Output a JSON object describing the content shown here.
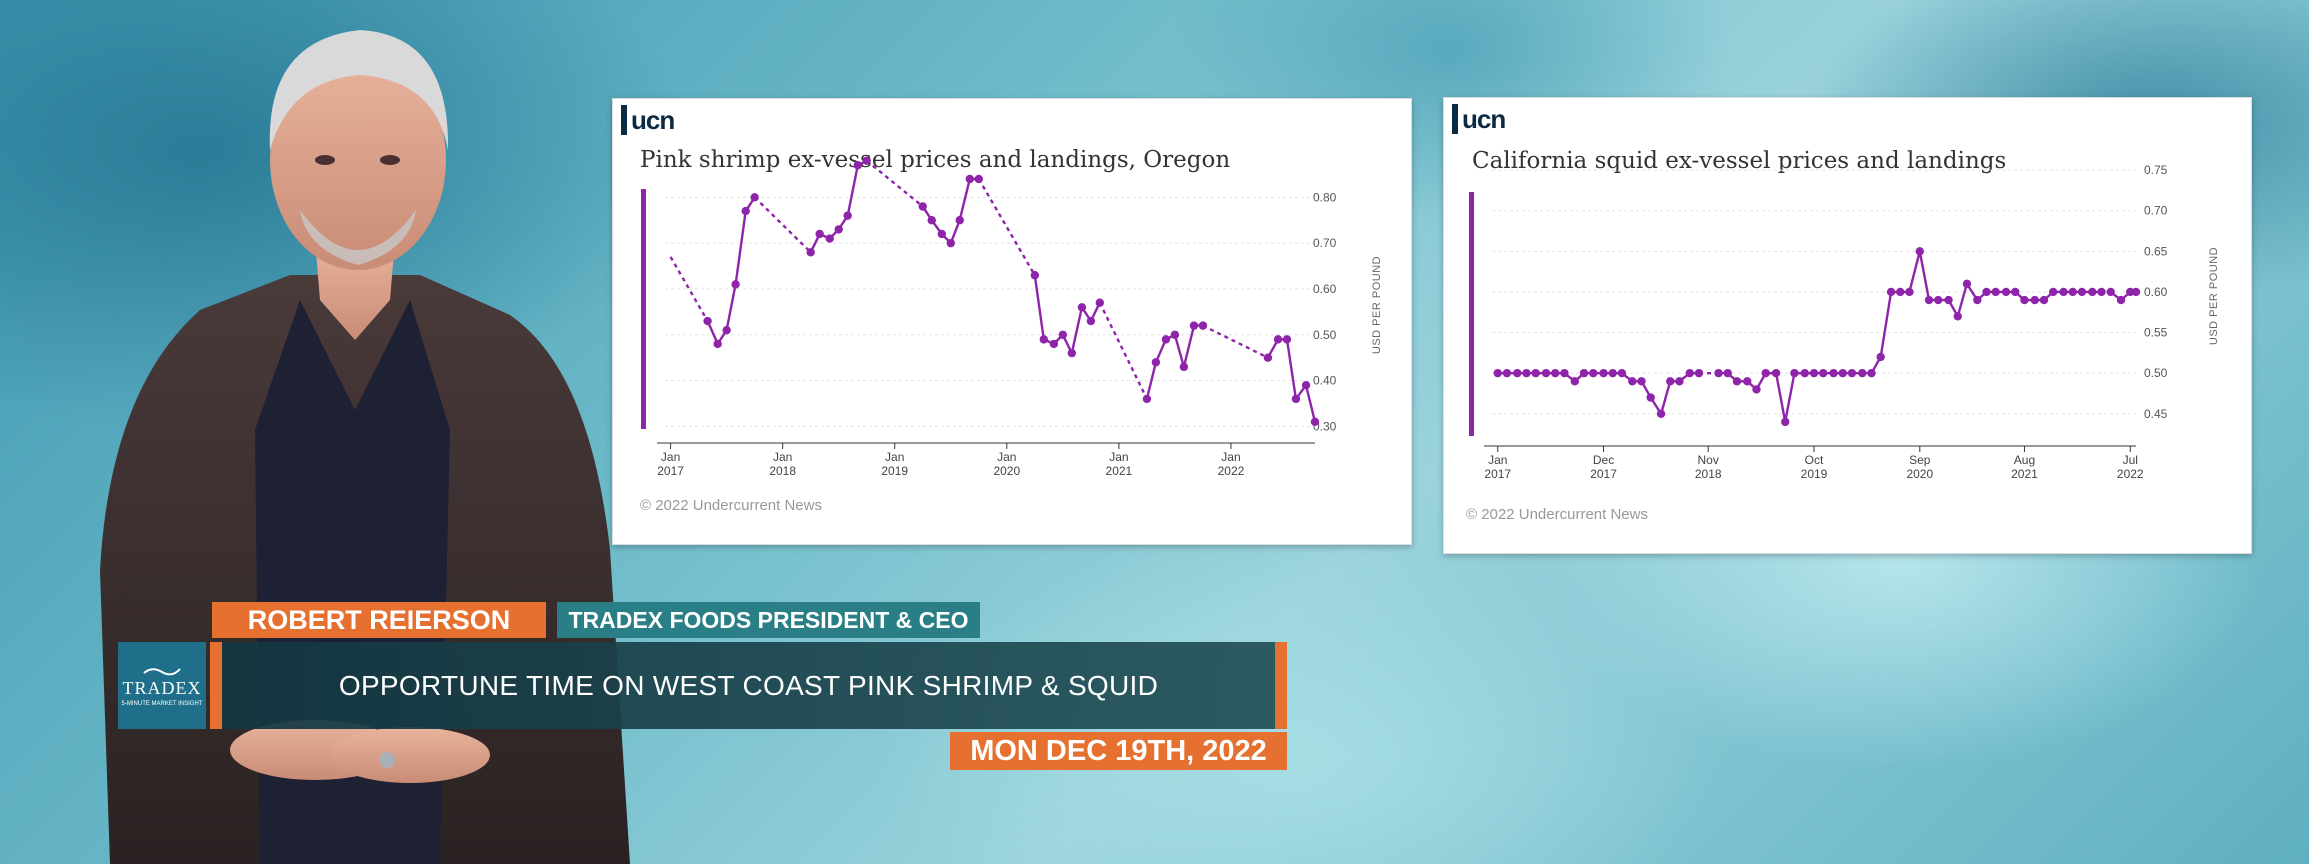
{
  "presenter": {
    "name": "ROBERT REIERSON",
    "role": "TRADEX FOODS PRESIDENT & CEO"
  },
  "headline": "OPPORTUNE TIME ON WEST COAST PINK SHRIMP & SQUID",
  "date": "MON DEC 19TH, 2022",
  "brand": {
    "name": "TRADEX",
    "sub": "5-MINUTE MARKET INSIGHT"
  },
  "colors": {
    "accent_orange": "#e5702f",
    "teal": "#2a7f86",
    "series_purple": "#8e24aa",
    "ucn_navy": "#0c2a44"
  },
  "chart_data": [
    {
      "type": "line",
      "logo": "ucn",
      "title": "Pink shrimp ex-vessel prices and landings, Oregon",
      "ylabel": "USD PER POUND",
      "copyright": "© 2022 Undercurrent News",
      "x_ticks": [
        {
          "month": "Jan",
          "year": "2017",
          "t": 2017.0
        },
        {
          "month": "Jan",
          "year": "2018",
          "t": 2018.0
        },
        {
          "month": "Jan",
          "year": "2019",
          "t": 2019.0
        },
        {
          "month": "Jan",
          "year": "2020",
          "t": 2020.0
        },
        {
          "month": "Jan",
          "year": "2021",
          "t": 2021.0
        },
        {
          "month": "Jan",
          "year": "2022",
          "t": 2022.0
        }
      ],
      "y_ticks": [
        "0.30",
        "0.40",
        "0.50",
        "0.60",
        "0.70",
        "0.80"
      ],
      "xlim": [
        2016.95,
        2022.75
      ],
      "ylim": [
        0.29,
        0.84
      ],
      "grid": true,
      "segments": [
        {
          "style": "dashed",
          "points": [
            [
              2017.0,
              0.67
            ],
            [
              2017.33,
              0.53
            ]
          ]
        },
        {
          "style": "solid",
          "points": [
            [
              2017.33,
              0.53
            ],
            [
              2017.42,
              0.48
            ],
            [
              2017.5,
              0.51
            ],
            [
              2017.58,
              0.61
            ],
            [
              2017.67,
              0.77
            ],
            [
              2017.75,
              0.8
            ]
          ]
        },
        {
          "style": "dashed",
          "points": [
            [
              2017.75,
              0.8
            ],
            [
              2018.25,
              0.68
            ]
          ]
        },
        {
          "style": "solid",
          "points": [
            [
              2018.25,
              0.68
            ],
            [
              2018.33,
              0.72
            ],
            [
              2018.42,
              0.71
            ],
            [
              2018.5,
              0.73
            ],
            [
              2018.58,
              0.76
            ],
            [
              2018.67,
              0.87
            ],
            [
              2018.75,
              0.88
            ]
          ]
        },
        {
          "style": "dashed",
          "points": [
            [
              2018.75,
              0.88
            ],
            [
              2019.25,
              0.78
            ]
          ]
        },
        {
          "style": "solid",
          "points": [
            [
              2019.25,
              0.78
            ],
            [
              2019.33,
              0.75
            ],
            [
              2019.42,
              0.72
            ],
            [
              2019.5,
              0.7
            ],
            [
              2019.58,
              0.75
            ],
            [
              2019.67,
              0.84
            ],
            [
              2019.75,
              0.84
            ]
          ]
        },
        {
          "style": "dashed",
          "points": [
            [
              2019.75,
              0.84
            ],
            [
              2020.25,
              0.63
            ]
          ]
        },
        {
          "style": "solid",
          "points": [
            [
              2020.25,
              0.63
            ],
            [
              2020.33,
              0.49
            ],
            [
              2020.42,
              0.48
            ],
            [
              2020.5,
              0.5
            ],
            [
              2020.58,
              0.46
            ],
            [
              2020.67,
              0.56
            ],
            [
              2020.75,
              0.53
            ],
            [
              2020.83,
              0.57
            ]
          ]
        },
        {
          "style": "dashed",
          "points": [
            [
              2020.83,
              0.57
            ],
            [
              2021.25,
              0.36
            ]
          ]
        },
        {
          "style": "solid",
          "points": [
            [
              2021.25,
              0.36
            ],
            [
              2021.33,
              0.44
            ],
            [
              2021.42,
              0.49
            ],
            [
              2021.5,
              0.5
            ],
            [
              2021.58,
              0.43
            ],
            [
              2021.67,
              0.52
            ],
            [
              2021.75,
              0.52
            ]
          ]
        },
        {
          "style": "dashed",
          "points": [
            [
              2021.75,
              0.52
            ],
            [
              2022.33,
              0.45
            ]
          ]
        },
        {
          "style": "solid",
          "points": [
            [
              2022.33,
              0.45
            ],
            [
              2022.42,
              0.49
            ],
            [
              2022.5,
              0.49
            ],
            [
              2022.58,
              0.36
            ],
            [
              2022.67,
              0.39
            ],
            [
              2022.75,
              0.31
            ]
          ]
        }
      ]
    },
    {
      "type": "line",
      "logo": "ucn",
      "title": "California squid ex-vessel prices and landings",
      "ylabel": "USD PER POUND",
      "copyright": "© 2022 Undercurrent News",
      "x_ticks": [
        {
          "month": "Jan",
          "year": "2017",
          "t": 2017.0
        },
        {
          "month": "Dec",
          "year": "2017",
          "t": 2017.92
        },
        {
          "month": "Nov",
          "year": "2018",
          "t": 2018.83
        },
        {
          "month": "Oct",
          "year": "2019",
          "t": 2019.75
        },
        {
          "month": "Sep",
          "year": "2020",
          "t": 2020.67
        },
        {
          "month": "Aug",
          "year": "2021",
          "t": 2021.58
        },
        {
          "month": "Jul",
          "year": "2022",
          "t": 2022.5
        }
      ],
      "y_ticks": [
        "0.45",
        "0.50",
        "0.55",
        "0.60",
        "0.65",
        "0.70",
        "0.75"
      ],
      "xlim": [
        2016.95,
        2022.55
      ],
      "ylim": [
        0.43,
        0.76
      ],
      "grid": true,
      "segments": [
        {
          "style": "solid",
          "points": [
            [
              2017.0,
              0.5
            ],
            [
              2017.08,
              0.5
            ],
            [
              2017.17,
              0.5
            ],
            [
              2017.25,
              0.5
            ],
            [
              2017.33,
              0.5
            ],
            [
              2017.42,
              0.5
            ],
            [
              2017.5,
              0.5
            ],
            [
              2017.58,
              0.5
            ],
            [
              2017.67,
              0.49
            ],
            [
              2017.75,
              0.5
            ],
            [
              2017.83,
              0.5
            ],
            [
              2017.92,
              0.5
            ],
            [
              2018.0,
              0.5
            ],
            [
              2018.08,
              0.5
            ],
            [
              2018.17,
              0.49
            ],
            [
              2018.25,
              0.49
            ],
            [
              2018.33,
              0.47
            ],
            [
              2018.42,
              0.45
            ],
            [
              2018.5,
              0.49
            ],
            [
              2018.58,
              0.49
            ],
            [
              2018.67,
              0.5
            ],
            [
              2018.75,
              0.5
            ]
          ]
        },
        {
          "style": "dashed",
          "points": [
            [
              2018.75,
              0.5
            ],
            [
              2018.92,
              0.5
            ]
          ]
        },
        {
          "style": "solid",
          "points": [
            [
              2018.92,
              0.5
            ],
            [
              2019.0,
              0.5
            ],
            [
              2019.08,
              0.49
            ],
            [
              2019.17,
              0.49
            ],
            [
              2019.25,
              0.48
            ],
            [
              2019.33,
              0.5
            ],
            [
              2019.42,
              0.5
            ],
            [
              2019.5,
              0.44
            ],
            [
              2019.58,
              0.5
            ],
            [
              2019.67,
              0.5
            ],
            [
              2019.75,
              0.5
            ],
            [
              2019.83,
              0.5
            ],
            [
              2019.92,
              0.5
            ],
            [
              2020.0,
              0.5
            ],
            [
              2020.08,
              0.5
            ],
            [
              2020.17,
              0.5
            ],
            [
              2020.25,
              0.5
            ],
            [
              2020.33,
              0.52
            ],
            [
              2020.42,
              0.6
            ],
            [
              2020.5,
              0.6
            ],
            [
              2020.58,
              0.6
            ],
            [
              2020.67,
              0.65
            ],
            [
              2020.75,
              0.59
            ],
            [
              2020.83,
              0.59
            ],
            [
              2020.92,
              0.59
            ],
            [
              2021.0,
              0.57
            ],
            [
              2021.08,
              0.61
            ],
            [
              2021.17,
              0.59
            ],
            [
              2021.25,
              0.6
            ],
            [
              2021.33,
              0.6
            ],
            [
              2021.42,
              0.6
            ],
            [
              2021.5,
              0.6
            ],
            [
              2021.58,
              0.59
            ],
            [
              2021.67,
              0.59
            ],
            [
              2021.75,
              0.59
            ],
            [
              2021.83,
              0.6
            ],
            [
              2021.92,
              0.6
            ],
            [
              2022.0,
              0.6
            ],
            [
              2022.08,
              0.6
            ],
            [
              2022.17,
              0.6
            ],
            [
              2022.25,
              0.6
            ]
          ]
        },
        {
          "style": "dashed",
          "points": [
            [
              2022.25,
              0.6
            ],
            [
              2022.33,
              0.6
            ]
          ]
        },
        {
          "style": "solid",
          "points": [
            [
              2022.33,
              0.6
            ],
            [
              2022.42,
              0.59
            ],
            [
              2022.5,
              0.6
            ],
            [
              2022.55,
              0.6
            ]
          ]
        }
      ]
    }
  ]
}
